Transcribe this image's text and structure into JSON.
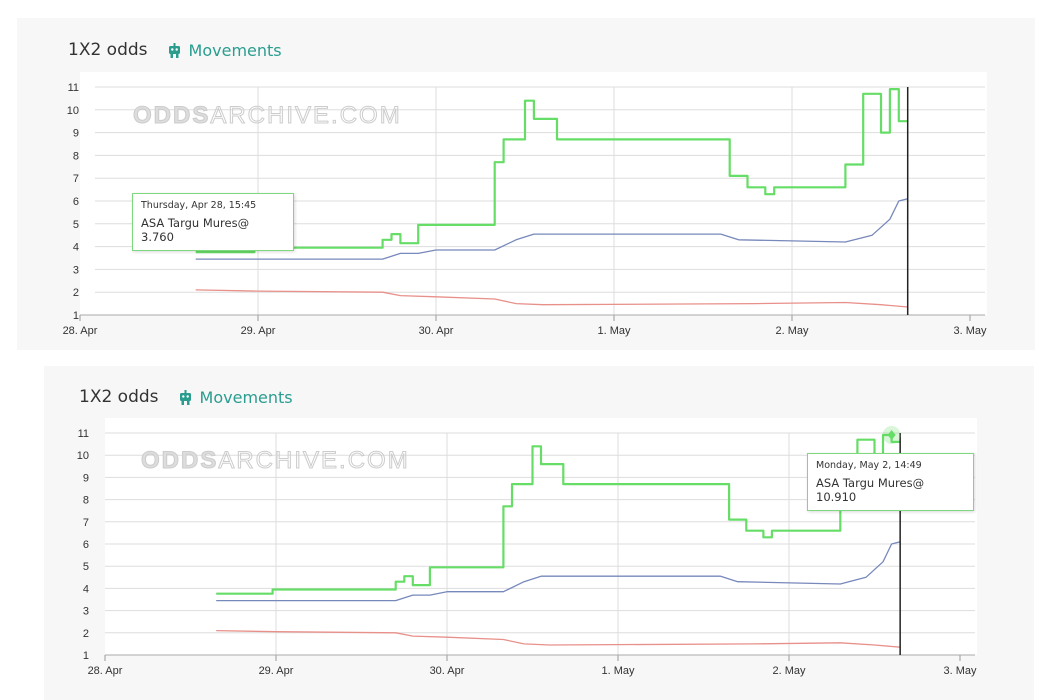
{
  "charts": [
    {
      "header": {
        "title": "1X2 odds",
        "link_label": "Movements",
        "link_icon": "robot-icon"
      },
      "watermark": {
        "part1": "ODDS",
        "part2": "ARCHIVE.COM"
      },
      "tooltip": {
        "date": "Thursday, Apr 28, 15:45",
        "text": "ASA Targu Mures@ 3.760"
      }
    },
    {
      "header": {
        "title": "1X2 odds",
        "link_label": "Movements",
        "link_icon": "robot-icon"
      },
      "watermark": {
        "part1": "ODDS",
        "part2": "ARCHIVE.COM"
      },
      "tooltip": {
        "date": "Monday, May 2, 14:49",
        "text": "ASA Targu Mures@ 10.910"
      }
    }
  ],
  "colors": {
    "home": "#66dd66",
    "draw": "#7788bb",
    "away": "#e8908a",
    "grid": "#dddddd",
    "axis": "#333333",
    "link": "#2a9d8f",
    "cursor": "#222222"
  },
  "chart_data": [
    {
      "type": "line",
      "title": "1X2 odds",
      "x_ticks": [
        "28. Apr",
        "29. Apr",
        "30. Apr",
        "1. May",
        "2. May",
        "3. May"
      ],
      "y_ticks": [
        1,
        2,
        3,
        4,
        5,
        6,
        7,
        8,
        9,
        10,
        11
      ],
      "ylim": [
        1,
        11
      ],
      "xlim": [
        0,
        5
      ],
      "grid": true,
      "series": [
        {
          "key": "home",
          "name": "ASA Targu Mures",
          "x": [
            0.65,
            0.98,
            0.98,
            1.7,
            1.7,
            1.75,
            1.75,
            1.8,
            1.8,
            1.9,
            1.9,
            2.33,
            2.33,
            2.38,
            2.38,
            2.5,
            2.5,
            2.55,
            2.55,
            2.68,
            2.68,
            3.65,
            3.65,
            3.75,
            3.75,
            3.85,
            3.85,
            3.9,
            3.9,
            4.3,
            4.3,
            4.4,
            4.4,
            4.5,
            4.5,
            4.55,
            4.55,
            4.6,
            4.6,
            4.65
          ],
          "y": [
            3.76,
            3.76,
            3.95,
            3.95,
            4.3,
            4.3,
            4.55,
            4.55,
            4.15,
            4.15,
            4.95,
            4.95,
            7.7,
            7.7,
            8.7,
            8.7,
            10.4,
            10.4,
            9.6,
            9.6,
            8.7,
            8.7,
            7.1,
            7.1,
            6.6,
            6.6,
            6.3,
            6.3,
            6.6,
            6.6,
            7.6,
            7.6,
            10.7,
            10.7,
            9.0,
            9.0,
            10.91,
            10.91,
            9.5,
            9.5
          ]
        },
        {
          "key": "draw",
          "x": [
            0.65,
            1.7,
            1.8,
            1.9,
            2.0,
            2.33,
            2.45,
            2.55,
            3.6,
            3.7,
            4.3,
            4.45,
            4.55,
            4.6,
            4.65
          ],
          "y": [
            3.45,
            3.45,
            3.7,
            3.7,
            3.85,
            3.85,
            4.3,
            4.55,
            4.55,
            4.3,
            4.2,
            4.5,
            5.2,
            6.0,
            6.1
          ]
        },
        {
          "key": "away",
          "x": [
            0.65,
            1.0,
            1.7,
            1.8,
            2.0,
            2.33,
            2.45,
            2.6,
            3.8,
            4.3,
            4.5,
            4.65
          ],
          "y": [
            2.1,
            2.05,
            2.0,
            1.85,
            1.8,
            1.7,
            1.5,
            1.45,
            1.5,
            1.55,
            1.45,
            1.35
          ]
        }
      ]
    },
    {
      "type": "line",
      "title": "1X2 odds",
      "x_ticks": [
        "28. Apr",
        "29. Apr",
        "30. Apr",
        "1. May",
        "2. May",
        "3. May"
      ],
      "y_ticks": [
        1,
        2,
        3,
        4,
        5,
        6,
        7,
        8,
        9,
        10,
        11
      ],
      "ylim": [
        1,
        11
      ],
      "xlim": [
        0,
        5
      ],
      "grid": true,
      "series": [
        {
          "key": "home",
          "name": "ASA Targu Mures",
          "x": [
            0.65,
            0.98,
            0.98,
            1.7,
            1.7,
            1.75,
            1.75,
            1.8,
            1.8,
            1.9,
            1.9,
            2.33,
            2.33,
            2.38,
            2.38,
            2.5,
            2.5,
            2.55,
            2.55,
            2.68,
            2.68,
            3.65,
            3.65,
            3.75,
            3.75,
            3.85,
            3.85,
            3.9,
            3.9,
            4.3,
            4.3,
            4.4,
            4.4,
            4.5,
            4.5,
            4.55,
            4.55,
            4.6,
            4.6,
            4.65
          ],
          "y": [
            3.76,
            3.76,
            3.95,
            3.95,
            4.3,
            4.3,
            4.55,
            4.55,
            4.15,
            4.15,
            4.95,
            4.95,
            7.7,
            7.7,
            8.7,
            8.7,
            10.4,
            10.4,
            9.6,
            9.6,
            8.7,
            8.7,
            7.1,
            7.1,
            6.6,
            6.6,
            6.3,
            6.3,
            6.6,
            6.6,
            7.6,
            7.6,
            10.7,
            10.7,
            9.0,
            9.0,
            10.91,
            10.91,
            10.6,
            10.6
          ]
        },
        {
          "key": "draw",
          "x": [
            0.65,
            1.7,
            1.8,
            1.9,
            2.0,
            2.33,
            2.45,
            2.55,
            3.6,
            3.7,
            4.3,
            4.45,
            4.55,
            4.6,
            4.65
          ],
          "y": [
            3.45,
            3.45,
            3.7,
            3.7,
            3.85,
            3.85,
            4.3,
            4.55,
            4.55,
            4.3,
            4.2,
            4.5,
            5.2,
            6.0,
            6.1
          ]
        },
        {
          "key": "away",
          "x": [
            0.65,
            1.0,
            1.7,
            1.8,
            2.0,
            2.33,
            2.45,
            2.6,
            3.8,
            4.3,
            4.5,
            4.65
          ],
          "y": [
            2.1,
            2.05,
            2.0,
            1.85,
            1.8,
            1.7,
            1.5,
            1.45,
            1.5,
            1.55,
            1.45,
            1.35
          ]
        }
      ],
      "marker": {
        "x": 4.6,
        "y": 10.91
      }
    }
  ]
}
